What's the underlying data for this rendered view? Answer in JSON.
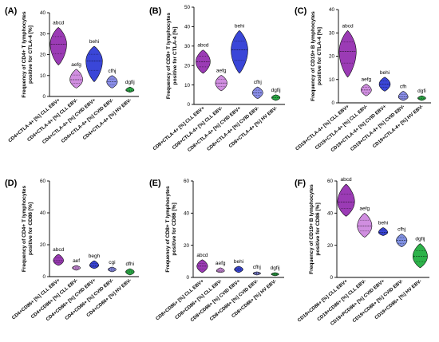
{
  "colors": {
    "CLL EBV+": "#9b3bb5",
    "CLL EBV-": "#d08ee0",
    "CVID EBV+": "#3a46d8",
    "CVID EBV-": "#8a8ee8",
    "HV EBV-": "#2db34a",
    "CVID EBV- (CD19)": "#7f8fe0"
  },
  "chart_data": [
    {
      "panel": "(A)",
      "type": "violin",
      "ylabel_lines": [
        "Frequency of CD4+ T lymphocytes",
        "positive for CTLA-4 [%]"
      ],
      "ylim": [
        0,
        40
      ],
      "yticks": [
        0,
        10,
        20,
        30,
        40
      ],
      "categories": [
        "CD4+CTLA-4+ [%] CLL EBV+",
        "CD4+CTLA-4+ [%] CLL EBV-",
        "CD4+CTLA-4+ [%] CVID EBV+",
        "CD4+CTLA-4+ [%] CVID EBV-",
        "CD4+CTLA-4+ [%] HV EBV-"
      ],
      "group_colors": [
        "CLL EBV+",
        "CLL EBV-",
        "CVID EBV+",
        "CVID EBV-",
        "HV EBV-"
      ],
      "min": [
        15,
        4,
        7,
        4,
        2
      ],
      "max": [
        33,
        13,
        24,
        10,
        4.5
      ],
      "median": [
        25,
        8,
        17,
        7,
        3
      ],
      "sig": [
        "abcd",
        "aefg",
        "behi",
        "cfhj",
        "dgfij"
      ]
    },
    {
      "panel": "(B)",
      "type": "violin",
      "ylabel_lines": [
        "Frequency of CD8+ T lymphocytes",
        "positive for CTLA-4 [%]"
      ],
      "ylim": [
        0,
        50
      ],
      "yticks": [
        0,
        10,
        20,
        30,
        40,
        50
      ],
      "categories": [
        "CD8+CTLA-4+ [%] CLL EBV+",
        "CD8+CTLA-4+ [%] CLL EBV-",
        "CD8+CTLA-4+ [%] CVID EBV+",
        "CD8+CTLA-4+ [%] CVID EBV-",
        "CD8+CTLA-4+ [%] HV EBV-"
      ],
      "group_colors": [
        "CLL EBV+",
        "CLL EBV-",
        "CVID EBV+",
        "CVID EBV-",
        "HV EBV-"
      ],
      "min": [
        16,
        7,
        16,
        3,
        2
      ],
      "max": [
        28,
        15,
        38,
        9,
        5
      ],
      "median": [
        22,
        11,
        28,
        6,
        3.5
      ],
      "sig": [
        "abcd",
        "aefg",
        "behi",
        "cfhj",
        "dgfij"
      ]
    },
    {
      "panel": "(C)",
      "type": "violin",
      "ylabel_lines": [
        "Frequency of CD19+ B lymphocytes",
        "positive for CTLA-4 [%]"
      ],
      "ylim": [
        0,
        40
      ],
      "yticks": [
        0,
        10,
        20,
        30,
        40
      ],
      "categories": [
        "CD19+CTLA-4+ [%] CLL EBV+",
        "CD19+CTLA-4+ [%] CLL EBV-",
        "CD19+CTLA-4+ [%] CVID EBV+",
        "CD19+CTLA-4+ [%] CVID EBV-",
        "CD19+CTLA-4+ [%] HV EBV-"
      ],
      "group_colors": [
        "CLL EBV+",
        "CLL EBV-",
        "CVID EBV+",
        "CVID EBV-",
        "HV EBV-"
      ],
      "min": [
        11,
        3,
        5,
        1,
        1
      ],
      "max": [
        31,
        8,
        11,
        5,
        3
      ],
      "median": [
        22,
        5.5,
        8,
        2.5,
        2
      ],
      "sig": [
        "abcd",
        "aefg",
        "behi",
        "cfh",
        "dgfi"
      ]
    },
    {
      "panel": "(D)",
      "type": "violin",
      "ylabel_lines": [
        "Frequency of CD4+ T lymphocytes",
        "positive for CD86 [%]"
      ],
      "ylim": [
        0,
        60
      ],
      "yticks": [
        0,
        20,
        40,
        60
      ],
      "categories": [
        "CD4+CD86+ [%] CLL EBV+",
        "CD4+CD86+ [%] CLL EBV-",
        "CD4+CD86+ [%] CVID EBV+",
        "CD4+CD86+ [%] CVID EBV-",
        "CD4+CD86+ [%] HV EBV-"
      ],
      "group_colors": [
        "CLL EBV+",
        "CLL EBV-",
        "CVID EBV+",
        "CVID EBV-",
        "HV EBV-"
      ],
      "min": [
        7,
        4,
        5,
        3,
        1
      ],
      "max": [
        14,
        7,
        10,
        6,
        5
      ],
      "median": [
        10,
        5.5,
        7,
        4.5,
        3
      ],
      "sig": [
        "abcd",
        "aef",
        "begh",
        "cgi",
        "dfhi"
      ]
    },
    {
      "panel": "(E)",
      "type": "violin",
      "ylabel_lines": [
        "Frequency of CD8+ T lymphocytes",
        "positive for CD86 [%]"
      ],
      "ylim": [
        0,
        60
      ],
      "yticks": [
        0,
        20,
        40,
        60
      ],
      "categories": [
        "CD8+CD86+ [%] CLL EBV+",
        "CD8+CD86+ [%] CLL EBV-",
        "CD8+CD86+ [%] CVID EBV+",
        "CD8+CD86+ [%] CVID EBV-",
        "CD8+CD86+ [%] HV EBV-"
      ],
      "group_colors": [
        "CLL EBV+",
        "CLL EBV-",
        "CVID EBV+",
        "CVID EBV-",
        "HV EBV-"
      ],
      "min": [
        3,
        3,
        3,
        1.5,
        1
      ],
      "max": [
        11,
        6,
        7,
        3.5,
        3
      ],
      "median": [
        7,
        4,
        5,
        2.5,
        2
      ],
      "sig": [
        "abcd",
        "aefg",
        "behi",
        "cfhj",
        "dgfij"
      ]
    },
    {
      "panel": "(F)",
      "type": "violin",
      "ylabel_lines": [
        "Frequency of CD19+ B lymphocytes",
        "positive for CD86 [%]"
      ],
      "ylim": [
        0,
        60
      ],
      "yticks": [
        0,
        20,
        40,
        60
      ],
      "categories": [
        "CD19+CD86+ [%] CLL EBV+",
        "CD19+CD86+ [%] CLL EBV-",
        "CD19+PCD86+ [%] CVID EBV+",
        "CD19+CD86+ [%] CVID EBV-",
        "CD19+CD86+ [%] HV EBV-"
      ],
      "group_colors": [
        "CLL EBV+",
        "CLL EBV-",
        "CVID EBV+",
        "CVID EBV- (CD19)",
        "HV EBV-"
      ],
      "min": [
        38,
        25,
        26,
        19,
        6
      ],
      "max": [
        58,
        40,
        31,
        27,
        21
      ],
      "median": [
        47,
        32,
        28,
        23,
        13
      ],
      "sig": [
        "abcd",
        "aefg",
        "behi",
        "cfhj",
        "dgfij"
      ]
    }
  ]
}
